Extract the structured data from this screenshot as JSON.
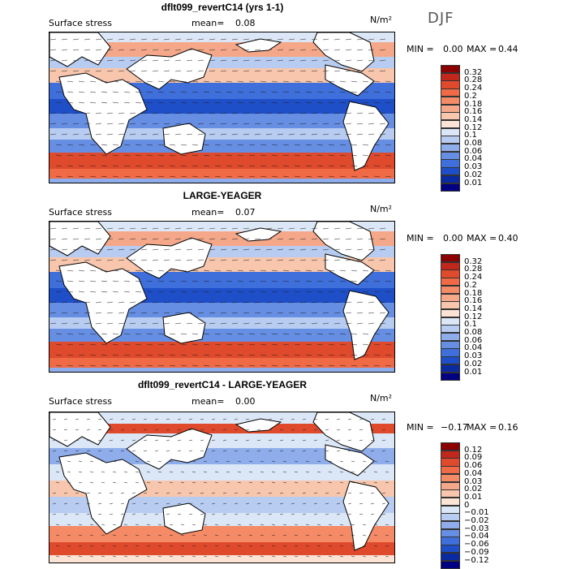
{
  "season_label": "DJF",
  "units": "N/m²",
  "panels": [
    {
      "title": "dflt099_revertC14 (yrs 1-1)",
      "field_label": "Surface stress",
      "mean_label": "mean=",
      "mean_value": "0.08",
      "min_label": "MIN =",
      "min_value": "0.00",
      "max_label": "MAX =",
      "max_value": "0.44",
      "levels": [
        "0.32",
        "0.28",
        "0.24",
        "0.2",
        "0.18",
        "0.16",
        "0.14",
        "0.12",
        "0.1",
        "0.08",
        "0.06",
        "0.04",
        "0.03",
        "0.02",
        "0.01"
      ],
      "colors": [
        "#8b0000",
        "#c1271b",
        "#e04a2c",
        "#f06a45",
        "#f48a66",
        "#f5a889",
        "#f7c6ad",
        "#fbe4d5",
        "#dbe7f7",
        "#b7ccf0",
        "#8eadea",
        "#668ee3",
        "#3f6fdb",
        "#1f4fc8",
        "#0a2aa0",
        "#000080"
      ]
    },
    {
      "title": "LARGE-YEAGER",
      "field_label": "Surface stress",
      "mean_label": "mean=",
      "mean_value": "0.07",
      "min_label": "MIN =",
      "min_value": "0.00",
      "max_label": "MAX =",
      "max_value": "0.40",
      "levels": [
        "0.32",
        "0.28",
        "0.24",
        "0.2",
        "0.18",
        "0.16",
        "0.14",
        "0.12",
        "0.1",
        "0.08",
        "0.06",
        "0.04",
        "0.03",
        "0.02",
        "0.01"
      ],
      "colors": [
        "#8b0000",
        "#c1271b",
        "#e04a2c",
        "#f06a45",
        "#f48a66",
        "#f5a889",
        "#f7c6ad",
        "#fbe4d5",
        "#dbe7f7",
        "#b7ccf0",
        "#8eadea",
        "#668ee3",
        "#3f6fdb",
        "#1f4fc8",
        "#0a2aa0",
        "#000080"
      ]
    },
    {
      "title": "dflt099_revertC14 - LARGE-YEAGER",
      "field_label": "Surface stress",
      "mean_label": "mean=",
      "mean_value": "0.00",
      "min_label": "MIN =",
      "min_value": "−0.17",
      "max_label": "MAX =",
      "max_value": "0.16",
      "levels": [
        "0.12",
        "0.09",
        "0.06",
        "0.04",
        "0.03",
        "0.02",
        "0.01",
        "0",
        "−0.01",
        "−0.02",
        "−0.03",
        "−0.04",
        "−0.06",
        "−0.09",
        "−0.12"
      ],
      "colors": [
        "#8b0000",
        "#c1271b",
        "#e04a2c",
        "#f06a45",
        "#f48a66",
        "#f5a889",
        "#f7c6ad",
        "#fbe4d5",
        "#dbe7f7",
        "#b7ccf0",
        "#8eadea",
        "#668ee3",
        "#3f6fdb",
        "#1f4fc8",
        "#0a2aa0",
        "#000080"
      ]
    }
  ],
  "chart_data": [
    {
      "type": "heatmap",
      "title": "dflt099_revertC14 (yrs 1-1)",
      "field": "Surface stress",
      "units": "N/m²",
      "mean": 0.08,
      "min": 0.0,
      "max": 0.44,
      "colorbar_levels": [
        0.32,
        0.28,
        0.24,
        0.2,
        0.18,
        0.16,
        0.14,
        0.12,
        0.1,
        0.08,
        0.06,
        0.04,
        0.03,
        0.02,
        0.01
      ]
    },
    {
      "type": "heatmap",
      "title": "LARGE-YEAGER",
      "field": "Surface stress",
      "units": "N/m²",
      "mean": 0.07,
      "min": 0.0,
      "max": 0.4,
      "colorbar_levels": [
        0.32,
        0.28,
        0.24,
        0.2,
        0.18,
        0.16,
        0.14,
        0.12,
        0.1,
        0.08,
        0.06,
        0.04,
        0.03,
        0.02,
        0.01
      ]
    },
    {
      "type": "heatmap",
      "title": "dflt099_revertC14 - LARGE-YEAGER",
      "field": "Surface stress",
      "units": "N/m²",
      "mean": 0.0,
      "min": -0.17,
      "max": 0.16,
      "colorbar_levels": [
        0.12,
        0.09,
        0.06,
        0.04,
        0.03,
        0.02,
        0.01,
        0,
        -0.01,
        -0.02,
        -0.03,
        -0.04,
        -0.06,
        -0.09,
        -0.12
      ]
    }
  ]
}
